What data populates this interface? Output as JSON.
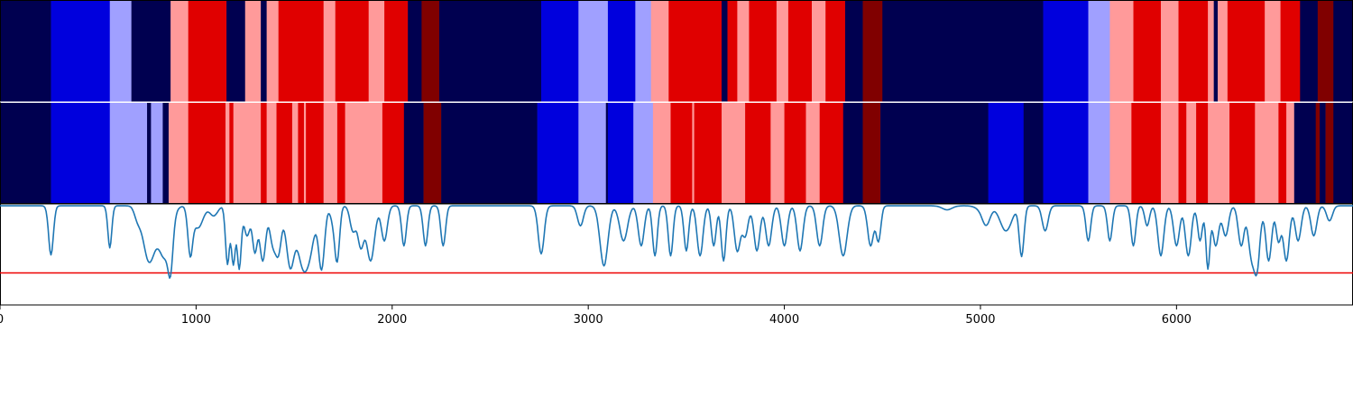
{
  "chart_data": [
    {
      "type": "heatmap",
      "title": "",
      "xlabel": "",
      "xlim": [
        0,
        6900
      ],
      "colors": {
        "0": "#000050",
        "1": "#0000dd",
        "2": "#a0a0ff",
        "3": "#ff9a9a",
        "4": "#e00000",
        "5": "#800000"
      },
      "rows": [
        {
          "name": "",
          "segments": [
            [
              0,
              260,
              0
            ],
            [
              260,
              560,
              1
            ],
            [
              560,
              670,
              2
            ],
            [
              670,
              870,
              0
            ],
            [
              870,
              960,
              3
            ],
            [
              960,
              1155,
              4
            ],
            [
              1155,
              1250,
              0
            ],
            [
              1250,
              1330,
              3
            ],
            [
              1330,
              1360,
              0
            ],
            [
              1360,
              1420,
              3
            ],
            [
              1420,
              1650,
              4
            ],
            [
              1650,
              1710,
              3
            ],
            [
              1710,
              1880,
              4
            ],
            [
              1880,
              1960,
              3
            ],
            [
              1960,
              2080,
              4
            ],
            [
              2080,
              2150,
              0
            ],
            [
              2150,
              2240,
              5
            ],
            [
              2240,
              2760,
              0
            ],
            [
              2760,
              2950,
              1
            ],
            [
              2950,
              3100,
              2
            ],
            [
              3100,
              3240,
              1
            ],
            [
              3240,
              3320,
              2
            ],
            [
              3320,
              3410,
              3
            ],
            [
              3410,
              3680,
              4
            ],
            [
              3680,
              3710,
              0
            ],
            [
              3710,
              3760,
              4
            ],
            [
              3760,
              3820,
              3
            ],
            [
              3820,
              3960,
              4
            ],
            [
              3960,
              4020,
              3
            ],
            [
              4020,
              4140,
              4
            ],
            [
              4140,
              4210,
              3
            ],
            [
              4210,
              4310,
              4
            ],
            [
              4310,
              4400,
              0
            ],
            [
              4400,
              4500,
              5
            ],
            [
              4500,
              5320,
              0
            ],
            [
              5320,
              5550,
              1
            ],
            [
              5550,
              5660,
              2
            ],
            [
              5660,
              5780,
              3
            ],
            [
              5780,
              5920,
              4
            ],
            [
              5920,
              6010,
              3
            ],
            [
              6010,
              6160,
              4
            ],
            [
              6160,
              6190,
              3
            ],
            [
              6190,
              6210,
              0
            ],
            [
              6210,
              6260,
              3
            ],
            [
              6260,
              6450,
              4
            ],
            [
              6450,
              6530,
              3
            ],
            [
              6530,
              6630,
              4
            ],
            [
              6630,
              6720,
              0
            ],
            [
              6720,
              6800,
              5
            ],
            [
              6800,
              6900,
              0
            ]
          ]
        },
        {
          "name": "",
          "segments": [
            [
              0,
              260,
              0
            ],
            [
              260,
              560,
              1
            ],
            [
              560,
              750,
              2
            ],
            [
              750,
              770,
              0
            ],
            [
              770,
              830,
              2
            ],
            [
              830,
              860,
              0
            ],
            [
              860,
              960,
              3
            ],
            [
              960,
              1150,
              4
            ],
            [
              1150,
              1170,
              3
            ],
            [
              1170,
              1190,
              4
            ],
            [
              1190,
              1330,
              3
            ],
            [
              1330,
              1360,
              4
            ],
            [
              1360,
              1410,
              3
            ],
            [
              1410,
              1490,
              4
            ],
            [
              1490,
              1520,
              3
            ],
            [
              1520,
              1550,
              4
            ],
            [
              1550,
              1560,
              3
            ],
            [
              1560,
              1650,
              4
            ],
            [
              1650,
              1720,
              3
            ],
            [
              1720,
              1760,
              4
            ],
            [
              1760,
              1950,
              3
            ],
            [
              1950,
              2060,
              4
            ],
            [
              2060,
              2160,
              0
            ],
            [
              2160,
              2250,
              5
            ],
            [
              2250,
              2740,
              0
            ],
            [
              2740,
              2950,
              1
            ],
            [
              2950,
              3090,
              2
            ],
            [
              3090,
              3100,
              0
            ],
            [
              3100,
              3230,
              1
            ],
            [
              3230,
              3330,
              2
            ],
            [
              3330,
              3420,
              3
            ],
            [
              3420,
              3530,
              4
            ],
            [
              3530,
              3540,
              3
            ],
            [
              3540,
              3680,
              4
            ],
            [
              3680,
              3800,
              3
            ],
            [
              3800,
              3930,
              4
            ],
            [
              3930,
              4000,
              3
            ],
            [
              4000,
              4110,
              4
            ],
            [
              4110,
              4180,
              3
            ],
            [
              4180,
              4300,
              4
            ],
            [
              4300,
              4400,
              0
            ],
            [
              4400,
              4490,
              5
            ],
            [
              4490,
              5040,
              0
            ],
            [
              5040,
              5220,
              1
            ],
            [
              5220,
              5320,
              0
            ],
            [
              5320,
              5550,
              1
            ],
            [
              5550,
              5660,
              2
            ],
            [
              5660,
              5770,
              3
            ],
            [
              5770,
              5920,
              4
            ],
            [
              5920,
              6010,
              3
            ],
            [
              6010,
              6050,
              4
            ],
            [
              6050,
              6100,
              3
            ],
            [
              6100,
              6160,
              4
            ],
            [
              6160,
              6270,
              3
            ],
            [
              6270,
              6400,
              4
            ],
            [
              6400,
              6520,
              3
            ],
            [
              6520,
              6560,
              4
            ],
            [
              6560,
              6600,
              3
            ],
            [
              6600,
              6710,
              0
            ],
            [
              6710,
              6730,
              5
            ],
            [
              6730,
              6760,
              0
            ],
            [
              6760,
              6800,
              5
            ],
            [
              6800,
              6900,
              0
            ]
          ]
        }
      ]
    },
    {
      "type": "line",
      "title": "",
      "xlabel": "",
      "ylabel": "",
      "xlim": [
        0,
        6900
      ],
      "ylim": [
        -1.0,
        0.0
      ],
      "xticks": [
        0,
        1000,
        2000,
        3000,
        4000,
        5000,
        6000
      ],
      "xtick_labels": [
        "0",
        "1000",
        "2000",
        "3000",
        "4000",
        "5000",
        "6000"
      ],
      "threshold": {
        "value": -0.68,
        "color": "#ee0000"
      },
      "series": [
        {
          "name": "",
          "color": "#1f77b4",
          "baseline": -0.01,
          "dips": [
            [
              260,
              0.49,
              12
            ],
            [
              560,
              0.42,
              10
            ],
            [
              700,
              0.1,
              15
            ],
            [
              760,
              0.55,
              30
            ],
            [
              840,
              0.5,
              30
            ],
            [
              870,
              0.4,
              12
            ],
            [
              970,
              0.45,
              12
            ],
            [
              1010,
              0.22,
              25
            ],
            [
              1090,
              0.1,
              20
            ],
            [
              1160,
              0.58,
              10
            ],
            [
              1190,
              0.58,
              10
            ],
            [
              1220,
              0.62,
              10
            ],
            [
              1260,
              0.3,
              15
            ],
            [
              1300,
              0.45,
              12
            ],
            [
              1340,
              0.55,
              15
            ],
            [
              1390,
              0.35,
              15
            ],
            [
              1420,
              0.45,
              15
            ],
            [
              1480,
              0.6,
              20
            ],
            [
              1540,
              0.5,
              25
            ],
            [
              1580,
              0.4,
              25
            ],
            [
              1640,
              0.62,
              15
            ],
            [
              1700,
              0.15,
              15
            ],
            [
              1720,
              0.5,
              12
            ],
            [
              1800,
              0.25,
              15
            ],
            [
              1840,
              0.4,
              15
            ],
            [
              1890,
              0.55,
              20
            ],
            [
              1960,
              0.35,
              15
            ],
            [
              2060,
              0.4,
              12
            ],
            [
              2170,
              0.4,
              12
            ],
            [
              2260,
              0.4,
              12
            ],
            [
              2760,
              0.48,
              15
            ],
            [
              2960,
              0.2,
              15
            ],
            [
              3080,
              0.6,
              20
            ],
            [
              3180,
              0.35,
              20
            ],
            [
              3270,
              0.4,
              15
            ],
            [
              3340,
              0.5,
              12
            ],
            [
              3420,
              0.5,
              12
            ],
            [
              3500,
              0.45,
              12
            ],
            [
              3570,
              0.5,
              15
            ],
            [
              3640,
              0.4,
              12
            ],
            [
              3690,
              0.55,
              12
            ],
            [
              3760,
              0.45,
              15
            ],
            [
              3800,
              0.3,
              15
            ],
            [
              3860,
              0.45,
              15
            ],
            [
              3920,
              0.4,
              15
            ],
            [
              4000,
              0.4,
              15
            ],
            [
              4080,
              0.45,
              15
            ],
            [
              4180,
              0.4,
              15
            ],
            [
              4300,
              0.5,
              20
            ],
            [
              4440,
              0.4,
              15
            ],
            [
              4480,
              0.35,
              12
            ],
            [
              4830,
              0.04,
              25
            ],
            [
              5000,
              0.03,
              25
            ],
            [
              5030,
              0.18,
              20
            ],
            [
              5130,
              0.25,
              30
            ],
            [
              5210,
              0.5,
              12
            ],
            [
              5330,
              0.25,
              15
            ],
            [
              5550,
              0.35,
              12
            ],
            [
              5660,
              0.35,
              12
            ],
            [
              5780,
              0.4,
              12
            ],
            [
              5850,
              0.2,
              12
            ],
            [
              5920,
              0.5,
              15
            ],
            [
              6000,
              0.4,
              15
            ],
            [
              6060,
              0.5,
              15
            ],
            [
              6120,
              0.35,
              12
            ],
            [
              6160,
              0.62,
              10
            ],
            [
              6200,
              0.4,
              15
            ],
            [
              6250,
              0.3,
              15
            ],
            [
              6330,
              0.4,
              15
            ],
            [
              6380,
              0.45,
              15
            ],
            [
              6410,
              0.62,
              15
            ],
            [
              6470,
              0.55,
              15
            ],
            [
              6520,
              0.35,
              12
            ],
            [
              6560,
              0.55,
              15
            ],
            [
              6620,
              0.35,
              15
            ],
            [
              6700,
              0.3,
              15
            ],
            [
              6780,
              0.15,
              15
            ]
          ]
        }
      ]
    }
  ]
}
